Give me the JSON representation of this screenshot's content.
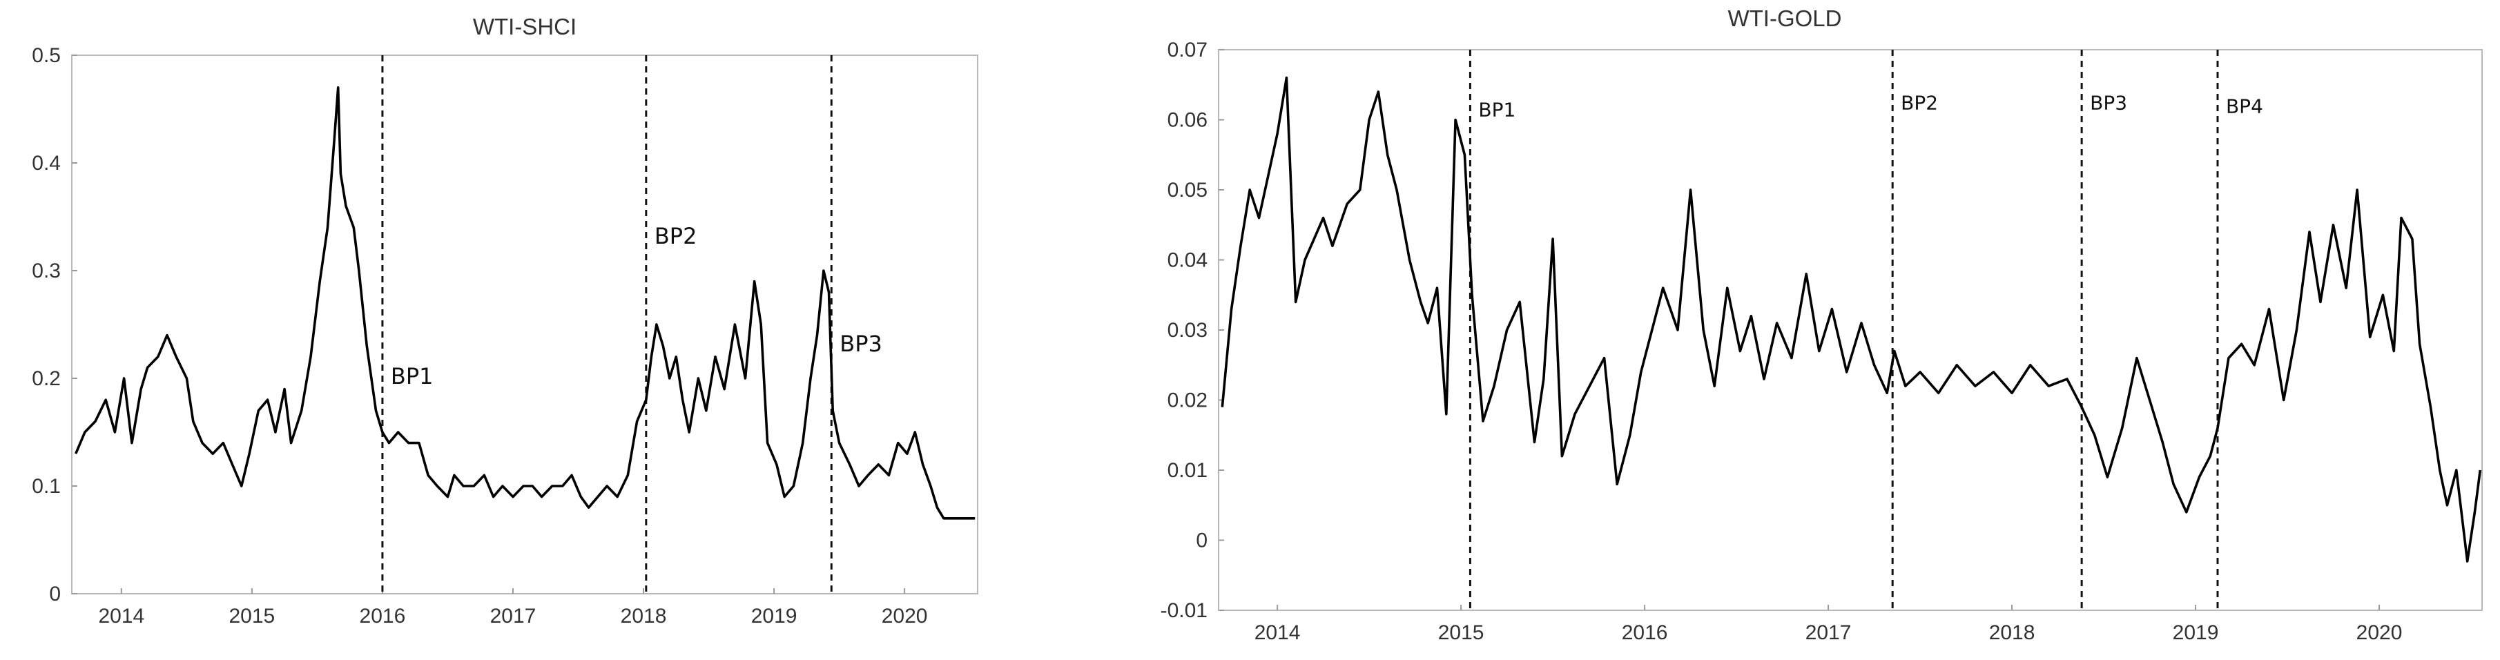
{
  "chart_data": [
    {
      "type": "line",
      "title": "WTI-SHCI",
      "xlabel": "",
      "ylabel": "",
      "xlim": [
        2013.62,
        2020.56
      ],
      "ylim": [
        0,
        0.5
      ],
      "yticks": [
        0,
        0.1,
        0.2,
        0.3,
        0.4,
        0.5
      ],
      "ytick_labels": [
        "0",
        "0.1",
        "0.2",
        "0.3",
        "0.4",
        "0.5"
      ],
      "xticks": [
        2014,
        2015,
        2016,
        2017,
        2018,
        2019,
        2020
      ],
      "xtick_labels": [
        "2014",
        "2015",
        "2016",
        "2017",
        "2018",
        "2019",
        "2020"
      ],
      "breakpoints": [
        {
          "label": "BP1",
          "x": 2016.0,
          "label_y": 0.195
        },
        {
          "label": "BP2",
          "x": 2018.02,
          "label_y": 0.325
        },
        {
          "label": "BP3",
          "x": 2019.44,
          "label_y": 0.225
        }
      ],
      "series": [
        {
          "x": [
            2013.65,
            2013.72,
            2013.8,
            2013.88,
            2013.95,
            2014.02,
            2014.08,
            2014.15,
            2014.2,
            2014.28,
            2014.35,
            2014.42,
            2014.5,
            2014.55,
            2014.62,
            2014.7,
            2014.78,
            2014.85,
            2014.92,
            2014.98,
            2015.05,
            2015.12,
            2015.18,
            2015.25,
            2015.3,
            2015.38,
            2015.45,
            2015.52,
            2015.58,
            2015.63,
            2015.66,
            2015.68,
            2015.72,
            2015.78,
            2015.82,
            2015.88,
            2015.95,
            2016.0,
            2016.05,
            2016.12,
            2016.2,
            2016.28,
            2016.35,
            2016.42,
            2016.5,
            2016.55,
            2016.62,
            2016.7,
            2016.78,
            2016.85,
            2016.92,
            2017.0,
            2017.08,
            2017.15,
            2017.22,
            2017.3,
            2017.38,
            2017.45,
            2017.52,
            2017.58,
            2017.65,
            2017.72,
            2017.8,
            2017.88,
            2017.95,
            2018.02,
            2018.06,
            2018.1,
            2018.15,
            2018.2,
            2018.25,
            2018.3,
            2018.35,
            2018.42,
            2018.48,
            2018.55,
            2018.62,
            2018.7,
            2018.78,
            2018.85,
            2018.9,
            2018.95,
            2019.02,
            2019.08,
            2019.15,
            2019.22,
            2019.28,
            2019.33,
            2019.38,
            2019.42,
            2019.45,
            2019.5,
            2019.58,
            2019.65,
            2019.72,
            2019.8,
            2019.88,
            2019.95,
            2020.02,
            2020.08,
            2020.14,
            2020.2,
            2020.25,
            2020.3,
            2020.38,
            2020.46,
            2020.54
          ],
          "y": [
            0.13,
            0.15,
            0.16,
            0.18,
            0.15,
            0.2,
            0.14,
            0.19,
            0.21,
            0.22,
            0.24,
            0.22,
            0.2,
            0.16,
            0.14,
            0.13,
            0.14,
            0.12,
            0.1,
            0.13,
            0.17,
            0.18,
            0.15,
            0.19,
            0.14,
            0.17,
            0.22,
            0.29,
            0.34,
            0.42,
            0.47,
            0.39,
            0.36,
            0.34,
            0.3,
            0.23,
            0.17,
            0.15,
            0.14,
            0.15,
            0.14,
            0.14,
            0.11,
            0.1,
            0.09,
            0.11,
            0.1,
            0.1,
            0.11,
            0.09,
            0.1,
            0.09,
            0.1,
            0.1,
            0.09,
            0.1,
            0.1,
            0.11,
            0.09,
            0.08,
            0.09,
            0.1,
            0.09,
            0.11,
            0.16,
            0.18,
            0.22,
            0.25,
            0.23,
            0.2,
            0.22,
            0.18,
            0.15,
            0.2,
            0.17,
            0.22,
            0.19,
            0.25,
            0.2,
            0.29,
            0.25,
            0.14,
            0.12,
            0.09,
            0.1,
            0.14,
            0.2,
            0.24,
            0.3,
            0.28,
            0.17,
            0.14,
            0.12,
            0.1,
            0.11,
            0.12,
            0.11,
            0.14,
            0.13,
            0.15,
            0.12,
            0.1,
            0.08,
            0.07,
            0.07,
            0.07,
            0.07
          ]
        }
      ]
    },
    {
      "type": "line",
      "title": "WTI-GOLD",
      "xlabel": "",
      "ylabel": "",
      "xlim": [
        2013.68,
        2020.56
      ],
      "ylim": [
        -0.01,
        0.07
      ],
      "yticks": [
        -0.01,
        0,
        0.01,
        0.02,
        0.03,
        0.04,
        0.05,
        0.06,
        0.07
      ],
      "ytick_labels": [
        "-0.01",
        "0",
        "0.01",
        "0.02",
        "0.03",
        "0.04",
        "0.05",
        "0.06",
        "0.07"
      ],
      "xticks": [
        2014,
        2015,
        2016,
        2017,
        2018,
        2019,
        2020
      ],
      "xtick_labels": [
        "2014",
        "2015",
        "2016",
        "2017",
        "2018",
        "2019",
        "2020"
      ],
      "breakpoints": [
        {
          "label": "BP1",
          "x": 2015.05,
          "label_y": 0.0605
        },
        {
          "label": "BP2",
          "x": 2017.35,
          "label_y": 0.0615
        },
        {
          "label": "BP3",
          "x": 2018.38,
          "label_y": 0.0615
        },
        {
          "label": "BP4",
          "x": 2019.12,
          "label_y": 0.061
        }
      ],
      "series": [
        {
          "x": [
            2013.7,
            2013.75,
            2013.8,
            2013.85,
            2013.9,
            2013.95,
            2014.0,
            2014.05,
            2014.1,
            2014.15,
            2014.2,
            2014.25,
            2014.3,
            2014.38,
            2014.45,
            2014.5,
            2014.55,
            2014.6,
            2014.65,
            2014.72,
            2014.78,
            2014.82,
            2014.87,
            2014.92,
            2014.97,
            2015.02,
            2015.06,
            2015.12,
            2015.18,
            2015.25,
            2015.32,
            2015.4,
            2015.45,
            2015.5,
            2015.55,
            2015.62,
            2015.7,
            2015.78,
            2015.85,
            2015.92,
            2015.98,
            2016.05,
            2016.1,
            2016.18,
            2016.25,
            2016.32,
            2016.38,
            2016.45,
            2016.52,
            2016.58,
            2016.65,
            2016.72,
            2016.8,
            2016.88,
            2016.95,
            2017.02,
            2017.1,
            2017.18,
            2017.25,
            2017.32,
            2017.36,
            2017.42,
            2017.5,
            2017.6,
            2017.7,
            2017.8,
            2017.9,
            2018.0,
            2018.1,
            2018.2,
            2018.3,
            2018.38,
            2018.45,
            2018.52,
            2018.6,
            2018.68,
            2018.75,
            2018.82,
            2018.88,
            2018.95,
            2019.02,
            2019.08,
            2019.12,
            2019.18,
            2019.25,
            2019.32,
            2019.4,
            2019.48,
            2019.55,
            2019.62,
            2019.68,
            2019.75,
            2019.82,
            2019.88,
            2019.95,
            2020.02,
            2020.08,
            2020.12,
            2020.18,
            2020.22,
            2020.28,
            2020.33,
            2020.37,
            2020.42,
            2020.48,
            2020.52,
            2020.55
          ],
          "y": [
            0.019,
            0.033,
            0.042,
            0.05,
            0.046,
            0.052,
            0.058,
            0.066,
            0.034,
            0.04,
            0.043,
            0.046,
            0.042,
            0.048,
            0.05,
            0.06,
            0.064,
            0.055,
            0.05,
            0.04,
            0.034,
            0.031,
            0.036,
            0.018,
            0.06,
            0.055,
            0.035,
            0.017,
            0.022,
            0.03,
            0.034,
            0.014,
            0.023,
            0.043,
            0.012,
            0.018,
            0.022,
            0.026,
            0.008,
            0.015,
            0.024,
            0.031,
            0.036,
            0.03,
            0.05,
            0.03,
            0.022,
            0.036,
            0.027,
            0.032,
            0.023,
            0.031,
            0.026,
            0.038,
            0.027,
            0.033,
            0.024,
            0.031,
            0.025,
            0.021,
            0.027,
            0.022,
            0.024,
            0.021,
            0.025,
            0.022,
            0.024,
            0.021,
            0.025,
            0.022,
            0.023,
            0.019,
            0.015,
            0.009,
            0.016,
            0.026,
            0.02,
            0.014,
            0.008,
            0.004,
            0.009,
            0.012,
            0.016,
            0.026,
            0.028,
            0.025,
            0.033,
            0.02,
            0.03,
            0.044,
            0.034,
            0.045,
            0.036,
            0.05,
            0.029,
            0.035,
            0.027,
            0.046,
            0.043,
            0.028,
            0.019,
            0.01,
            0.005,
            0.01,
            -0.003,
            0.004,
            0.01
          ]
        }
      ]
    }
  ]
}
